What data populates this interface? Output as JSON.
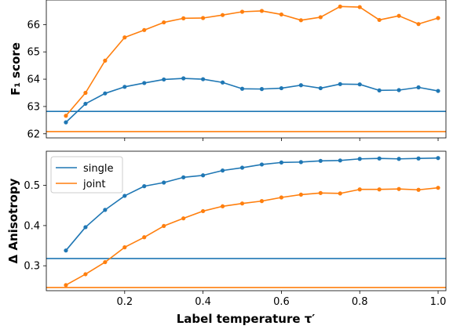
{
  "figure": {
    "shared_xlabel": "Label temperature τ′"
  },
  "colors": {
    "single": "#1f77b4",
    "joint": "#ff7f0e"
  },
  "chart_data": [
    {
      "type": "line",
      "panel": "top",
      "ylabel": "F₁ score",
      "xlim": [
        0.0,
        1.02
      ],
      "ylim": [
        61.85,
        66.9
      ],
      "xticks": [
        0.2,
        0.4,
        0.6,
        0.8,
        1.0
      ],
      "xtick_labels": [
        "0.2",
        "0.4",
        "0.6",
        "0.8",
        "1.0"
      ],
      "yticks": [
        62,
        63,
        64,
        65,
        66
      ],
      "ytick_labels": [
        "62",
        "63",
        "64",
        "65",
        "66"
      ],
      "show_xtick_labels": false,
      "x": [
        0.05,
        0.1,
        0.15,
        0.2,
        0.25,
        0.3,
        0.35,
        0.4,
        0.45,
        0.5,
        0.55,
        0.6,
        0.65,
        0.7,
        0.75,
        0.8,
        0.85,
        0.9,
        0.95,
        1.0
      ],
      "series": [
        {
          "key": "single",
          "values": [
            62.42,
            63.1,
            63.48,
            63.72,
            63.86,
            63.99,
            64.03,
            64.0,
            63.88,
            63.65,
            63.64,
            63.67,
            63.78,
            63.67,
            63.82,
            63.81,
            63.59,
            63.6,
            63.7,
            63.57
          ]
        },
        {
          "key": "joint",
          "values": [
            62.66,
            63.5,
            64.68,
            65.53,
            65.8,
            66.08,
            66.23,
            66.24,
            66.35,
            66.47,
            66.5,
            66.37,
            66.16,
            66.27,
            66.66,
            66.64,
            66.17,
            66.32,
            66.02,
            66.24
          ]
        }
      ],
      "baselines": [
        {
          "key": "single",
          "y": 62.82
        },
        {
          "key": "joint",
          "y": 62.08
        }
      ]
    },
    {
      "type": "line",
      "panel": "bottom",
      "ylabel": "Δ Anisotropy",
      "xlabel": "Label temperature τ′",
      "xlim": [
        0.0,
        1.02
      ],
      "ylim": [
        0.238,
        0.585
      ],
      "xticks": [
        0.2,
        0.4,
        0.6,
        0.8,
        1.0
      ],
      "xtick_labels": [
        "0.2",
        "0.4",
        "0.6",
        "0.8",
        "1.0"
      ],
      "yticks": [
        0.3,
        0.4,
        0.5
      ],
      "ytick_labels": [
        "0.3",
        "0.4",
        "0.5"
      ],
      "show_xtick_labels": true,
      "legend": {
        "placement": "top-left",
        "entries": [
          "single",
          "joint"
        ]
      },
      "x": [
        0.05,
        0.1,
        0.15,
        0.2,
        0.25,
        0.3,
        0.35,
        0.4,
        0.45,
        0.5,
        0.55,
        0.6,
        0.65,
        0.7,
        0.75,
        0.8,
        0.85,
        0.9,
        0.95,
        1.0
      ],
      "series": [
        {
          "key": "single",
          "name": "single",
          "values": [
            0.338,
            0.396,
            0.439,
            0.474,
            0.498,
            0.507,
            0.52,
            0.525,
            0.537,
            0.544,
            0.552,
            0.557,
            0.558,
            0.561,
            0.562,
            0.566,
            0.567,
            0.566,
            0.567,
            0.568
          ]
        },
        {
          "key": "joint",
          "name": "joint",
          "values": [
            0.252,
            0.279,
            0.309,
            0.346,
            0.371,
            0.399,
            0.418,
            0.436,
            0.448,
            0.455,
            0.461,
            0.47,
            0.477,
            0.481,
            0.48,
            0.49,
            0.49,
            0.491,
            0.489,
            0.494
          ]
        }
      ],
      "baselines": [
        {
          "key": "single",
          "y": 0.318
        },
        {
          "key": "joint",
          "y": 0.246
        }
      ]
    }
  ]
}
